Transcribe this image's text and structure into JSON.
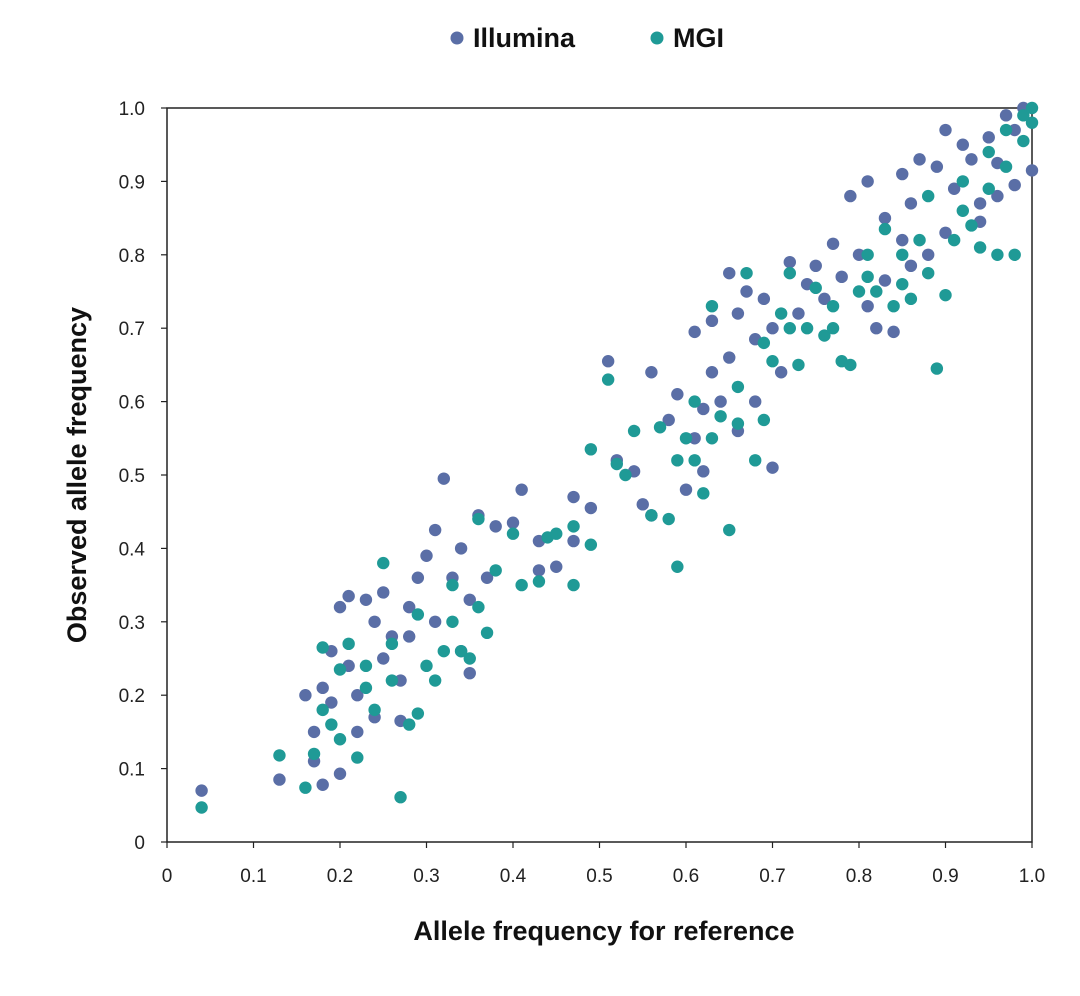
{
  "chart_data": {
    "type": "scatter",
    "title": "",
    "xlabel": "Allele frequency for reference",
    "ylabel": "Observed allele frequency",
    "xlim": [
      0,
      1.0
    ],
    "ylim": [
      0,
      1.0
    ],
    "x_ticks": [
      0,
      0.1,
      0.2,
      0.3,
      0.4,
      0.5,
      0.6,
      0.7,
      0.8,
      0.9,
      1.0
    ],
    "x_tick_labels": [
      "0",
      "0.1",
      "0.2",
      "0.3",
      "0.4",
      "0.5",
      "0.6",
      "0.7",
      "0.8",
      "0.9",
      "1.0"
    ],
    "y_ticks": [
      0,
      0.1,
      0.2,
      0.3,
      0.4,
      0.5,
      0.6,
      0.7,
      0.8,
      0.9,
      1.0
    ],
    "y_tick_labels": [
      "0",
      "0.1",
      "0.2",
      "0.3",
      "0.4",
      "0.5",
      "0.6",
      "0.7",
      "0.8",
      "0.9",
      "1.0"
    ],
    "grid": false,
    "legend_position": "top-center",
    "series": [
      {
        "name": "Illumina",
        "color": "#5a6ea6",
        "points": [
          [
            0.04,
            0.07
          ],
          [
            0.13,
            0.085
          ],
          [
            0.16,
            0.2
          ],
          [
            0.17,
            0.15
          ],
          [
            0.18,
            0.078
          ],
          [
            0.18,
            0.21
          ],
          [
            0.19,
            0.19
          ],
          [
            0.2,
            0.093
          ],
          [
            0.2,
            0.32
          ],
          [
            0.21,
            0.335
          ],
          [
            0.21,
            0.24
          ],
          [
            0.22,
            0.15
          ],
          [
            0.23,
            0.33
          ],
          [
            0.24,
            0.3
          ],
          [
            0.25,
            0.34
          ],
          [
            0.25,
            0.25
          ],
          [
            0.26,
            0.28
          ],
          [
            0.27,
            0.22
          ],
          [
            0.28,
            0.32
          ],
          [
            0.29,
            0.36
          ],
          [
            0.3,
            0.39
          ],
          [
            0.31,
            0.425
          ],
          [
            0.32,
            0.495
          ],
          [
            0.33,
            0.36
          ],
          [
            0.34,
            0.26
          ],
          [
            0.35,
            0.23
          ],
          [
            0.34,
            0.4
          ],
          [
            0.36,
            0.445
          ],
          [
            0.37,
            0.36
          ],
          [
            0.38,
            0.43
          ],
          [
            0.4,
            0.435
          ],
          [
            0.41,
            0.48
          ],
          [
            0.43,
            0.41
          ],
          [
            0.43,
            0.37
          ],
          [
            0.45,
            0.375
          ],
          [
            0.47,
            0.47
          ],
          [
            0.47,
            0.41
          ],
          [
            0.49,
            0.455
          ],
          [
            0.51,
            0.655
          ],
          [
            0.52,
            0.52
          ],
          [
            0.54,
            0.505
          ],
          [
            0.55,
            0.46
          ],
          [
            0.56,
            0.445
          ],
          [
            0.56,
            0.64
          ],
          [
            0.58,
            0.575
          ],
          [
            0.59,
            0.61
          ],
          [
            0.6,
            0.48
          ],
          [
            0.61,
            0.695
          ],
          [
            0.61,
            0.55
          ],
          [
            0.62,
            0.59
          ],
          [
            0.63,
            0.64
          ],
          [
            0.63,
            0.71
          ],
          [
            0.64,
            0.6
          ],
          [
            0.65,
            0.66
          ],
          [
            0.65,
            0.775
          ],
          [
            0.66,
            0.72
          ],
          [
            0.67,
            0.75
          ],
          [
            0.68,
            0.685
          ],
          [
            0.69,
            0.74
          ],
          [
            0.7,
            0.51
          ],
          [
            0.7,
            0.7
          ],
          [
            0.71,
            0.64
          ],
          [
            0.72,
            0.79
          ],
          [
            0.73,
            0.72
          ],
          [
            0.74,
            0.76
          ],
          [
            0.75,
            0.785
          ],
          [
            0.76,
            0.74
          ],
          [
            0.77,
            0.815
          ],
          [
            0.78,
            0.77
          ],
          [
            0.79,
            0.88
          ],
          [
            0.8,
            0.8
          ],
          [
            0.81,
            0.9
          ],
          [
            0.81,
            0.73
          ],
          [
            0.82,
            0.7
          ],
          [
            0.83,
            0.85
          ],
          [
            0.84,
            0.695
          ],
          [
            0.85,
            0.82
          ],
          [
            0.85,
            0.91
          ],
          [
            0.86,
            0.87
          ],
          [
            0.87,
            0.93
          ],
          [
            0.88,
            0.8
          ],
          [
            0.89,
            0.92
          ],
          [
            0.9,
            0.97
          ],
          [
            0.91,
            0.89
          ],
          [
            0.92,
            0.95
          ],
          [
            0.93,
            0.93
          ],
          [
            0.94,
            0.87
          ],
          [
            0.95,
            0.96
          ],
          [
            0.96,
            0.88
          ],
          [
            0.97,
            0.99
          ],
          [
            0.98,
            0.895
          ],
          [
            0.99,
            1.0
          ],
          [
            1.0,
            0.915
          ],
          [
            0.17,
            0.11
          ],
          [
            0.19,
            0.26
          ],
          [
            0.22,
            0.2
          ],
          [
            0.24,
            0.17
          ],
          [
            0.27,
            0.165
          ],
          [
            0.28,
            0.28
          ],
          [
            0.31,
            0.3
          ],
          [
            0.35,
            0.33
          ],
          [
            0.62,
            0.505
          ],
          [
            0.66,
            0.56
          ],
          [
            0.68,
            0.6
          ],
          [
            0.83,
            0.765
          ],
          [
            0.86,
            0.785
          ],
          [
            0.9,
            0.83
          ],
          [
            0.94,
            0.845
          ],
          [
            0.96,
            0.925
          ],
          [
            0.98,
            0.97
          ]
        ]
      },
      {
        "name": "MGI",
        "color": "#1f9a96",
        "points": [
          [
            0.04,
            0.047
          ],
          [
            0.13,
            0.118
          ],
          [
            0.16,
            0.074
          ],
          [
            0.17,
            0.12
          ],
          [
            0.18,
            0.265
          ],
          [
            0.19,
            0.16
          ],
          [
            0.2,
            0.235
          ],
          [
            0.21,
            0.27
          ],
          [
            0.22,
            0.115
          ],
          [
            0.23,
            0.21
          ],
          [
            0.24,
            0.18
          ],
          [
            0.25,
            0.38
          ],
          [
            0.26,
            0.27
          ],
          [
            0.27,
            0.061
          ],
          [
            0.28,
            0.16
          ],
          [
            0.29,
            0.175
          ],
          [
            0.3,
            0.24
          ],
          [
            0.31,
            0.22
          ],
          [
            0.32,
            0.26
          ],
          [
            0.33,
            0.3
          ],
          [
            0.34,
            0.26
          ],
          [
            0.35,
            0.25
          ],
          [
            0.36,
            0.44
          ],
          [
            0.37,
            0.285
          ],
          [
            0.38,
            0.37
          ],
          [
            0.4,
            0.42
          ],
          [
            0.41,
            0.35
          ],
          [
            0.43,
            0.355
          ],
          [
            0.44,
            0.415
          ],
          [
            0.45,
            0.42
          ],
          [
            0.47,
            0.43
          ],
          [
            0.47,
            0.35
          ],
          [
            0.49,
            0.535
          ],
          [
            0.49,
            0.405
          ],
          [
            0.51,
            0.63
          ],
          [
            0.52,
            0.515
          ],
          [
            0.53,
            0.5
          ],
          [
            0.54,
            0.56
          ],
          [
            0.56,
            0.445
          ],
          [
            0.57,
            0.565
          ],
          [
            0.58,
            0.44
          ],
          [
            0.59,
            0.375
          ],
          [
            0.6,
            0.55
          ],
          [
            0.61,
            0.52
          ],
          [
            0.62,
            0.475
          ],
          [
            0.63,
            0.73
          ],
          [
            0.64,
            0.58
          ],
          [
            0.65,
            0.425
          ],
          [
            0.66,
            0.62
          ],
          [
            0.67,
            0.775
          ],
          [
            0.68,
            0.52
          ],
          [
            0.69,
            0.575
          ],
          [
            0.7,
            0.655
          ],
          [
            0.71,
            0.72
          ],
          [
            0.72,
            0.775
          ],
          [
            0.73,
            0.65
          ],
          [
            0.74,
            0.7
          ],
          [
            0.75,
            0.755
          ],
          [
            0.76,
            0.69
          ],
          [
            0.77,
            0.7
          ],
          [
            0.78,
            0.655
          ],
          [
            0.79,
            0.65
          ],
          [
            0.8,
            0.75
          ],
          [
            0.81,
            0.8
          ],
          [
            0.82,
            0.75
          ],
          [
            0.83,
            0.835
          ],
          [
            0.84,
            0.73
          ],
          [
            0.85,
            0.8
          ],
          [
            0.86,
            0.74
          ],
          [
            0.87,
            0.82
          ],
          [
            0.88,
            0.775
          ],
          [
            0.89,
            0.645
          ],
          [
            0.9,
            0.745
          ],
          [
            0.91,
            0.82
          ],
          [
            0.92,
            0.86
          ],
          [
            0.93,
            0.84
          ],
          [
            0.94,
            0.81
          ],
          [
            0.95,
            0.89
          ],
          [
            0.96,
            0.8
          ],
          [
            0.97,
            0.92
          ],
          [
            0.98,
            0.8
          ],
          [
            0.99,
            0.955
          ],
          [
            1.0,
            0.98
          ],
          [
            0.18,
            0.18
          ],
          [
            0.2,
            0.14
          ],
          [
            0.23,
            0.24
          ],
          [
            0.26,
            0.22
          ],
          [
            0.29,
            0.31
          ],
          [
            0.33,
            0.35
          ],
          [
            0.36,
            0.32
          ],
          [
            0.59,
            0.52
          ],
          [
            0.61,
            0.6
          ],
          [
            0.63,
            0.55
          ],
          [
            0.66,
            0.57
          ],
          [
            0.69,
            0.68
          ],
          [
            0.72,
            0.7
          ],
          [
            0.77,
            0.73
          ],
          [
            0.81,
            0.77
          ],
          [
            0.85,
            0.76
          ],
          [
            0.88,
            0.88
          ],
          [
            0.92,
            0.9
          ],
          [
            0.95,
            0.94
          ],
          [
            0.97,
            0.97
          ],
          [
            0.99,
            0.99
          ],
          [
            1.0,
            1.0
          ]
        ]
      }
    ]
  }
}
